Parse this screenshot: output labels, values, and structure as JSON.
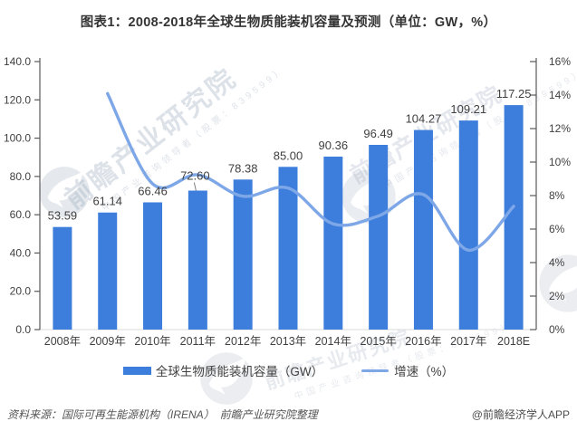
{
  "title": "图表1：2008-2018年全球生物质能装机容量及预测（单位：GW，%）",
  "chart_data": {
    "type": "bar+line",
    "categories": [
      "2008年",
      "2009年",
      "2010年",
      "2011年",
      "2012年",
      "2013年",
      "2014年",
      "2015年",
      "2016年",
      "2017年",
      "2018E"
    ],
    "series": [
      {
        "name": "全球生物质能装机容量（GW）",
        "type": "bar",
        "axis": "left",
        "values": [
          53.59,
          61.14,
          66.46,
          72.6,
          78.38,
          85.0,
          90.36,
          96.49,
          104.27,
          109.21,
          117.25
        ],
        "labels": [
          "53.59",
          "61.14",
          "66.46",
          "72.60",
          "78.38",
          "85.00",
          "90.36",
          "96.49",
          "104.27",
          "109.21",
          "117.25"
        ]
      },
      {
        "name": "增速（%）",
        "type": "line",
        "axis": "right",
        "values": [
          null,
          14.09,
          8.7,
          9.24,
          7.96,
          8.45,
          6.31,
          6.78,
          8.06,
          4.74,
          7.36
        ]
      }
    ],
    "left_axis": {
      "min": 0,
      "max": 140,
      "ticks": [
        "0.0",
        "20.0",
        "40.0",
        "60.0",
        "80.0",
        "100.0",
        "120.0",
        "140.0"
      ]
    },
    "right_axis": {
      "min": 0,
      "max": 16,
      "ticks": [
        "0%",
        "2%",
        "4%",
        "6%",
        "8%",
        "10%",
        "12%",
        "14%",
        "16%"
      ]
    },
    "callout_index": 3,
    "grid": false,
    "legend_position": "bottom"
  },
  "legend": {
    "bar_label": "全球生物质能装机容量（GW）",
    "line_label": "增速（%）"
  },
  "footer": {
    "source": "资料来源：国际可再生能源机构（IRENA）　前瞻产业研究院整理",
    "credit": "@前瞻经济学人APP"
  },
  "watermark": {
    "brand": "前瞻产业研究院",
    "tagline": "中国产业咨询领导者（股票：839599）"
  },
  "colors": {
    "bar": "#3D7EDC",
    "line": "#7EA7E8",
    "axis": "#595959",
    "baseline": "#D9D9D9",
    "text": "#404040",
    "title": "#333333",
    "leader": "#808080"
  }
}
